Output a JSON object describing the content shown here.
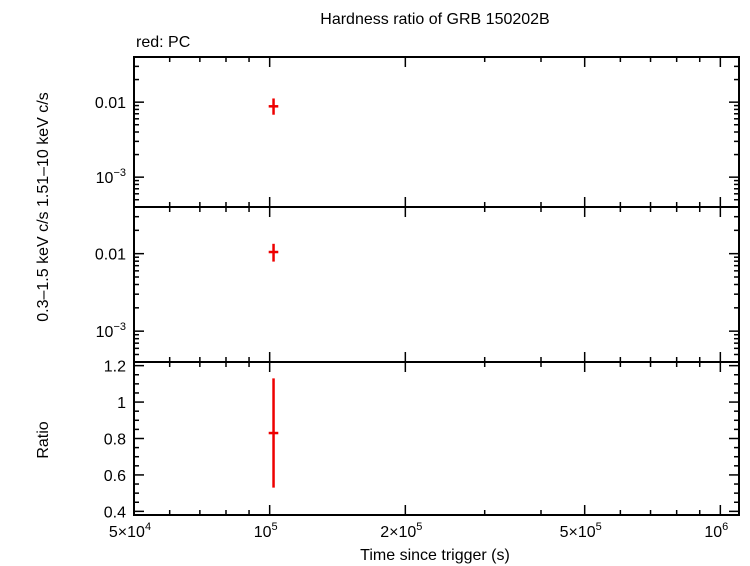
{
  "chart_data": {
    "type": "scatter",
    "title": "Hardness ratio of GRB 150202B",
    "legend_text": "red: PC",
    "xlabel": "Time since trigger (s)",
    "x_scale": "log",
    "xlim": [
      50000,
      1100000
    ],
    "x_ticks": [
      {
        "value": 50000,
        "mantissa": "5×10",
        "exp": "4"
      },
      {
        "value": 100000,
        "mantissa": "10",
        "exp": "5"
      },
      {
        "value": 200000,
        "mantissa": "2×10",
        "exp": "5"
      },
      {
        "value": 500000,
        "mantissa": "5×10",
        "exp": "5"
      },
      {
        "value": 1000000,
        "mantissa": "10",
        "exp": "6"
      }
    ],
    "series_color": "#ee0000",
    "panels": [
      {
        "id": "hard",
        "ylabel": "1.51–10 keV c/s",
        "y_scale": "log",
        "ylim": [
          0.0004,
          0.04
        ],
        "y_ticks": [
          {
            "value": 0.01,
            "mantissa": "0.01",
            "exp": ""
          },
          {
            "value": 0.001,
            "mantissa": "10",
            "exp": "−3"
          }
        ],
        "points": [
          {
            "x": 102000,
            "y": 0.0088,
            "xerr": [
              99500,
              104500
            ],
            "yerr": [
              0.0068,
              0.0112
            ]
          }
        ]
      },
      {
        "id": "soft",
        "ylabel": "0.3–1.5 keV c/s",
        "y_scale": "log",
        "ylim": [
          0.0004,
          0.04
        ],
        "y_ticks": [
          {
            "value": 0.01,
            "mantissa": "0.01",
            "exp": ""
          },
          {
            "value": 0.001,
            "mantissa": "10",
            "exp": "−3"
          }
        ],
        "points": [
          {
            "x": 102000,
            "y": 0.0105,
            "xerr": [
              99500,
              104500
            ],
            "yerr": [
              0.0079,
              0.0134
            ]
          }
        ]
      },
      {
        "id": "ratio",
        "ylabel": "Ratio",
        "y_scale": "linear",
        "ylim": [
          0.38,
          1.22
        ],
        "y_ticks": [
          {
            "value": 0.4,
            "mantissa": "0.4",
            "exp": ""
          },
          {
            "value": 0.6,
            "mantissa": "0.6",
            "exp": ""
          },
          {
            "value": 0.8,
            "mantissa": "0.8",
            "exp": ""
          },
          {
            "value": 1.0,
            "mantissa": "1",
            "exp": ""
          },
          {
            "value": 1.2,
            "mantissa": "1.2",
            "exp": ""
          }
        ],
        "points": [
          {
            "x": 102000,
            "y": 0.83,
            "xerr": [
              99500,
              104500
            ],
            "yerr": [
              0.53,
              1.13
            ]
          }
        ]
      }
    ]
  }
}
